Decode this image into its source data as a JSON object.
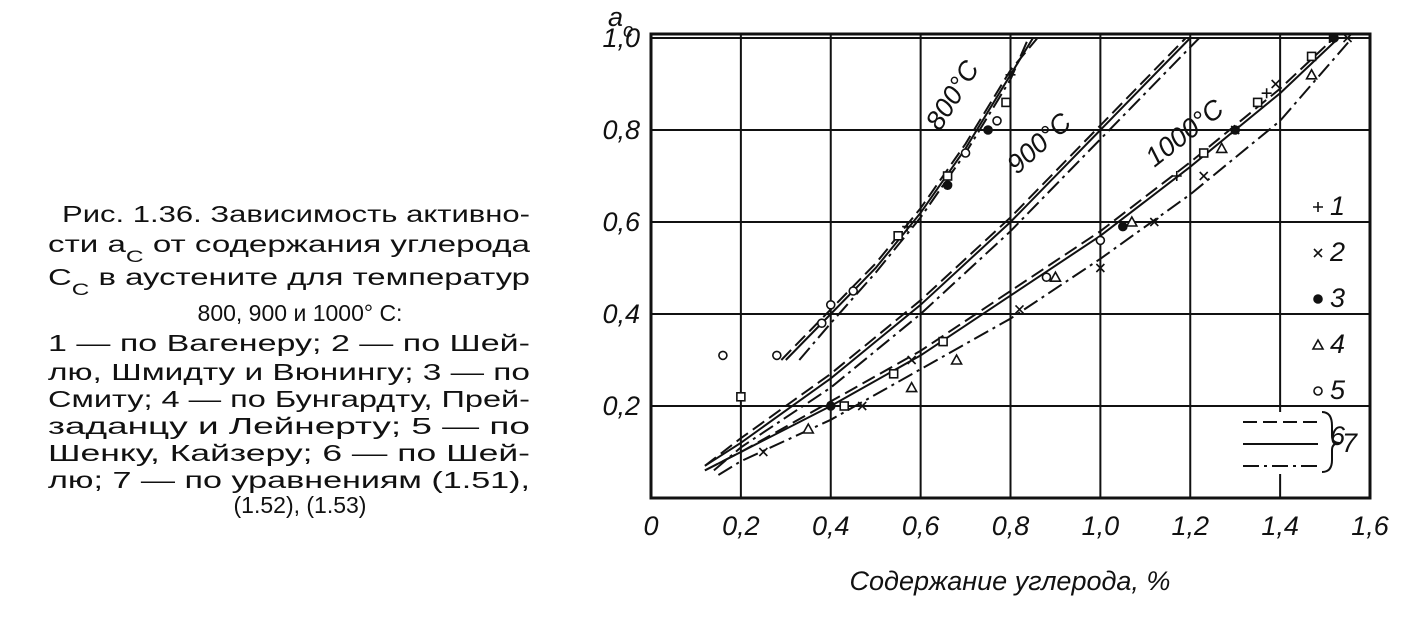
{
  "caption": {
    "lines": [
      [
        "Рис. 1.36. Зависимость активно-"
      ],
      [
        "сти a",
        "C",
        " от содержания углерода"
      ],
      [
        "C",
        "C",
        " в аустените для  температур"
      ],
      [
        "800, 900 и 1000° С:"
      ],
      [
        "1 — по Вагенеру; 2 — по Шей-"
      ],
      [
        "лю, Шмидту и Вюнингу; 3 — по"
      ],
      [
        "Смиту; 4 — по Бунгардту, Прей-"
      ],
      [
        "заданцу и Лейнерту; 5 — по"
      ],
      [
        "Шенку, Кайзеру; 6 — по Шей-"
      ],
      [
        "лю; 7 — по уравнениям (1.51),"
      ],
      [
        "(1.52), (1.53)"
      ]
    ]
  },
  "chart_data": {
    "type": "line-scatter",
    "ylabel": [
      "a",
      "c"
    ],
    "xlabel": "Содержание углерода, %",
    "xlim": [
      0,
      1.6
    ],
    "ylim": [
      0,
      1.0
    ],
    "grid": true,
    "xticks": [
      0,
      {
        "value": 0.2,
        "label": "0,2"
      },
      {
        "value": 0.4,
        "label": "0,4"
      },
      {
        "value": 0.6,
        "label": "0,6"
      },
      {
        "value": 0.8,
        "label": "0,8"
      },
      {
        "value": 1.0,
        "label": "1,0"
      },
      {
        "value": 1.2,
        "label": "1,2"
      },
      {
        "value": 1.4,
        "label": "1,4"
      },
      {
        "value": 1.6,
        "label": "1,6"
      }
    ],
    "yticks": [
      {
        "value": 0.2,
        "label": "0,2"
      },
      {
        "value": 0.4,
        "label": "0,4"
      },
      {
        "value": 0.6,
        "label": "0,6"
      },
      {
        "value": 0.8,
        "label": "0,8"
      },
      {
        "value": 1.0,
        "label": "1,0"
      }
    ],
    "line_legend": {
      "name": "7",
      "styles": [
        "dashed",
        "solid",
        "dashdot"
      ]
    },
    "curves": [
      {
        "label": "800°C",
        "lines": [
          {
            "style": "dashed",
            "x": [
              0.29,
              0.4,
              0.5,
              0.6,
              0.7,
              0.8,
              0.86
            ],
            "values": [
              0.3,
              0.41,
              0.51,
              0.63,
              0.77,
              0.93,
              1.0
            ]
          },
          {
            "style": "solid",
            "x": [
              0.3,
              0.4,
              0.5,
              0.6,
              0.7,
              0.8,
              0.85
            ],
            "values": [
              0.3,
              0.4,
              0.5,
              0.62,
              0.76,
              0.92,
              1.0
            ]
          },
          {
            "style": "dashdot",
            "x": [
              0.33,
              0.4,
              0.5,
              0.6,
              0.7,
              0.8,
              0.84
            ],
            "values": [
              0.3,
              0.38,
              0.49,
              0.61,
              0.75,
              0.91,
              1.0
            ]
          }
        ]
      },
      {
        "label": "900°C",
        "lines": [
          {
            "style": "dashed",
            "x": [
              0.12,
              0.2,
              0.4,
              0.6,
              0.8,
              1.0,
              1.19
            ],
            "values": [
              0.07,
              0.13,
              0.27,
              0.43,
              0.61,
              0.81,
              1.0
            ]
          },
          {
            "style": "solid",
            "x": [
              0.12,
              0.2,
              0.4,
              0.6,
              0.8,
              1.0,
              1.2
            ],
            "values": [
              0.07,
              0.12,
              0.26,
              0.42,
              0.6,
              0.8,
              1.0
            ]
          },
          {
            "style": "dashdot",
            "x": [
              0.14,
              0.2,
              0.4,
              0.6,
              0.8,
              1.0,
              1.22
            ],
            "values": [
              0.06,
              0.11,
              0.24,
              0.4,
              0.58,
              0.78,
              1.0
            ]
          }
        ]
      },
      {
        "label": "1000°C",
        "lines": [
          {
            "style": "dashed",
            "x": [
              0.12,
              0.2,
              0.4,
              0.6,
              0.8,
              1.0,
              1.2,
              1.4,
              1.52
            ],
            "values": [
              0.06,
              0.1,
              0.21,
              0.32,
              0.45,
              0.58,
              0.73,
              0.89,
              1.0
            ]
          },
          {
            "style": "solid",
            "x": [
              0.12,
              0.2,
              0.4,
              0.6,
              0.8,
              1.0,
              1.2,
              1.4,
              1.53
            ],
            "values": [
              0.06,
              0.1,
              0.2,
              0.31,
              0.44,
              0.57,
              0.72,
              0.88,
              1.0
            ]
          },
          {
            "style": "dashdot",
            "x": [
              0.15,
              0.2,
              0.4,
              0.6,
              0.8,
              1.0,
              1.2,
              1.4,
              1.56
            ],
            "values": [
              0.05,
              0.08,
              0.17,
              0.28,
              0.39,
              0.52,
              0.66,
              0.82,
              1.0
            ]
          }
        ]
      }
    ],
    "series": [
      {
        "name": "1",
        "marker": "plus",
        "x": [
          0.57,
          0.8,
          1.0,
          1.17,
          1.37,
          1.51
        ],
        "values": [
          0.59,
          0.92,
          0.8,
          0.7,
          0.88,
          1.0
        ]
      },
      {
        "name": "2",
        "marker": "cross",
        "x": [
          0.25,
          0.47,
          0.58,
          0.82,
          1.0,
          1.12,
          1.23,
          1.3,
          1.39,
          1.55
        ],
        "values": [
          0.1,
          0.2,
          0.3,
          0.41,
          0.5,
          0.6,
          0.7,
          0.8,
          0.9,
          1.0
        ]
      },
      {
        "name": "3",
        "marker": "dot",
        "x": [
          0.4,
          0.66,
          0.75,
          1.05,
          1.3,
          1.52
        ],
        "values": [
          0.2,
          0.68,
          0.8,
          0.59,
          0.8,
          1.0
        ]
      },
      {
        "name": "4",
        "marker": "triangle",
        "x": [
          0.35,
          0.58,
          0.68,
          0.9,
          1.07,
          1.27,
          1.47
        ],
        "values": [
          0.15,
          0.24,
          0.3,
          0.48,
          0.6,
          0.76,
          0.92
        ]
      },
      {
        "name": "5",
        "marker": "circle",
        "x": [
          0.16,
          0.28,
          0.38,
          0.4,
          0.45,
          0.7,
          0.77,
          0.88,
          1.0
        ],
        "values": [
          0.31,
          0.31,
          0.38,
          0.42,
          0.45,
          0.75,
          0.82,
          0.48,
          0.56
        ]
      },
      {
        "name": "6",
        "marker": "square",
        "x": [
          0.2,
          0.43,
          0.54,
          0.55,
          0.65,
          0.66,
          0.79,
          1.23,
          1.35,
          1.47
        ],
        "values": [
          0.22,
          0.2,
          0.27,
          0.57,
          0.34,
          0.7,
          0.86,
          0.75,
          0.86,
          0.96
        ]
      }
    ]
  }
}
